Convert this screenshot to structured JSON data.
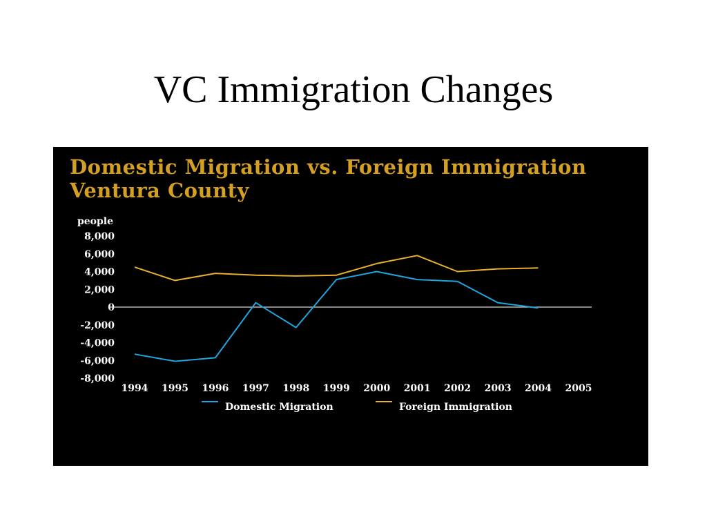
{
  "slide": {
    "title": "VC Immigration Changes"
  },
  "colors": {
    "title": "#D4A024",
    "domestic": "#1EA6E0",
    "foreign": "#E8B22C",
    "zero_line": "#D9D9D9",
    "text": "#FFFFFF",
    "panel": "#000000"
  },
  "chart_data": {
    "type": "line",
    "title_lines": [
      "Domestic Migration vs. Foreign Immigration",
      "Ventura County"
    ],
    "ylabel": "people",
    "ylim": [
      -8000,
      8000
    ],
    "yticks": [
      8000,
      6000,
      4000,
      2000,
      0,
      -2000,
      -4000,
      -6000,
      -8000
    ],
    "ytick_labels": [
      "8,000",
      "6,000",
      "4,000",
      "2,000",
      "0",
      "-2,000",
      "-4,000",
      "-6,000",
      "-8,000"
    ],
    "categories": [
      "1994",
      "1995",
      "1996",
      "1997",
      "1998",
      "1999",
      "2000",
      "2001",
      "2002",
      "2003",
      "2004",
      "2005"
    ],
    "series": [
      {
        "name": "Domestic Migration",
        "color": "#1EA6E0",
        "values": [
          -5300,
          -6100,
          -5700,
          500,
          -2300,
          3100,
          4000,
          3100,
          2900,
          500,
          -100,
          null
        ]
      },
      {
        "name": "Foreign Immigration",
        "color": "#E8B22C",
        "values": [
          4500,
          3000,
          3800,
          3600,
          3500,
          3600,
          4900,
          5800,
          4000,
          4300,
          4400,
          null
        ]
      }
    ],
    "grid": false,
    "legend": "bottom"
  }
}
